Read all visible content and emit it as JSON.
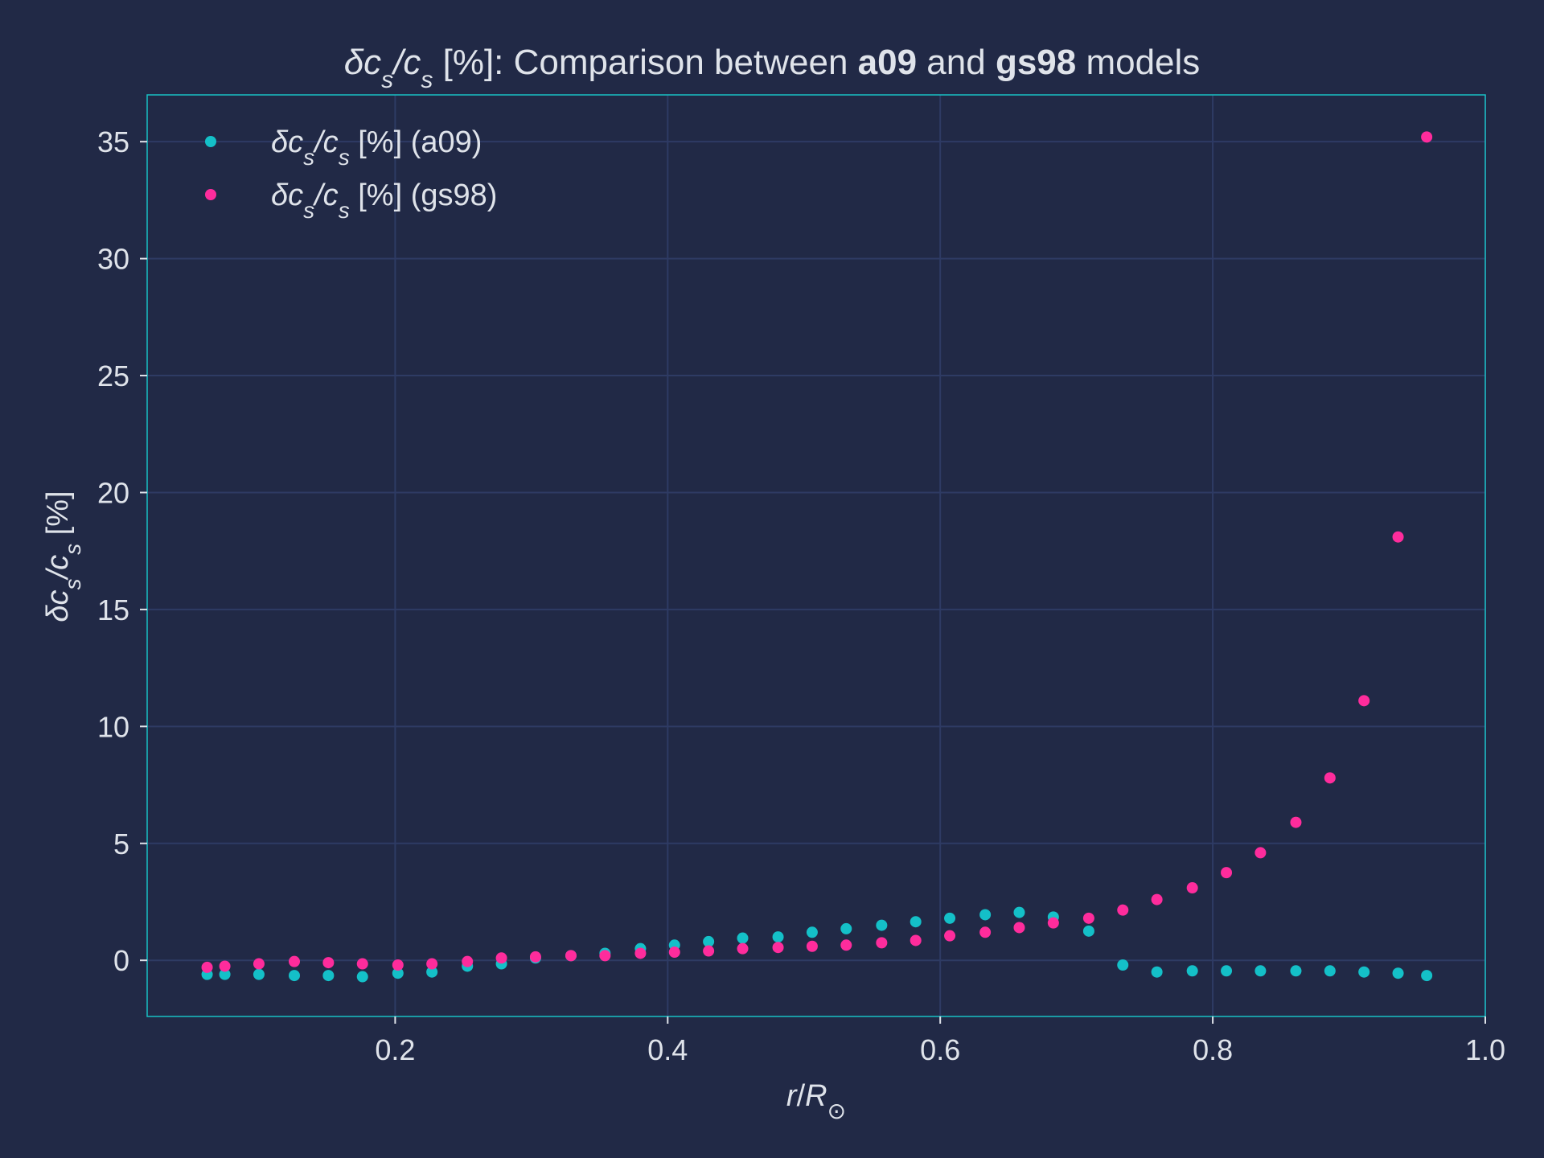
{
  "chart_data": {
    "type": "scatter",
    "title": {
      "p1": "δc",
      "p1_sub": "s",
      "p2": "/c",
      "p2_sub": "s",
      "p3": " [%]: Comparison between ",
      "b1": "a09",
      "p4": " and ",
      "b2": "gs98",
      "p5": " models"
    },
    "xlabel": {
      "r": "r",
      "slash": "/",
      "R": "R",
      "sun": "⊙"
    },
    "ylabel": {
      "a": "δc",
      "a_sub": "s",
      "b": "/c",
      "b_sub": "s",
      "c": " [%]"
    },
    "xlim": [
      0.018,
      1.0
    ],
    "ylim": [
      -2.4,
      37
    ],
    "xticks": [
      {
        "v": 0.2,
        "label": "0.2"
      },
      {
        "v": 0.4,
        "label": "0.4"
      },
      {
        "v": 0.6,
        "label": "0.6"
      },
      {
        "v": 0.8,
        "label": "0.8"
      },
      {
        "v": 1.0,
        "label": "1.0"
      }
    ],
    "yticks": [
      {
        "v": 0,
        "label": "0"
      },
      {
        "v": 5,
        "label": "5"
      },
      {
        "v": 10,
        "label": "10"
      },
      {
        "v": 15,
        "label": "15"
      },
      {
        "v": 20,
        "label": "20"
      },
      {
        "v": 25,
        "label": "25"
      },
      {
        "v": 30,
        "label": "30"
      },
      {
        "v": 35,
        "label": "35"
      }
    ],
    "grid": true,
    "legend_position": "top-left",
    "colors": {
      "background": "#212946",
      "grid": "#2e3b64",
      "frame": "#18c0c4",
      "text": "#dfe3ea"
    },
    "series": [
      {
        "name": "δcs/cs [%] (a09)",
        "legend": {
          "a": "δc",
          "a_sub": "s",
          "b": "/c",
          "b_sub": "s",
          "c": " [%] (a09)"
        },
        "color": "#14c0c8",
        "x": [
          0.062,
          0.075,
          0.1,
          0.126,
          0.151,
          0.176,
          0.202,
          0.227,
          0.253,
          0.278,
          0.303,
          0.329,
          0.354,
          0.38,
          0.405,
          0.43,
          0.455,
          0.481,
          0.506,
          0.531,
          0.557,
          0.582,
          0.607,
          0.633,
          0.658,
          0.683,
          0.709,
          0.734,
          0.759,
          0.785,
          0.81,
          0.835,
          0.861,
          0.886,
          0.911,
          0.936,
          0.957
        ],
        "y": [
          -0.6,
          -0.6,
          -0.6,
          -0.65,
          -0.65,
          -0.7,
          -0.55,
          -0.5,
          -0.25,
          -0.15,
          0.1,
          0.2,
          0.3,
          0.5,
          0.65,
          0.8,
          0.95,
          1.0,
          1.2,
          1.35,
          1.5,
          1.65,
          1.8,
          1.95,
          2.05,
          1.85,
          1.25,
          -0.2,
          -0.5,
          -0.45,
          -0.45,
          -0.45,
          -0.45,
          -0.45,
          -0.5,
          -0.55,
          -0.65
        ]
      },
      {
        "name": "δcs/cs [%] (gs98)",
        "legend": {
          "a": "δc",
          "a_sub": "s",
          "b": "/c",
          "b_sub": "s",
          "c": " [%] (gs98)"
        },
        "color": "#fe2c9c",
        "x": [
          0.062,
          0.075,
          0.1,
          0.126,
          0.151,
          0.176,
          0.202,
          0.227,
          0.253,
          0.278,
          0.303,
          0.329,
          0.354,
          0.38,
          0.405,
          0.43,
          0.455,
          0.481,
          0.506,
          0.531,
          0.557,
          0.582,
          0.607,
          0.633,
          0.658,
          0.683,
          0.709,
          0.734,
          0.759,
          0.785,
          0.81,
          0.835,
          0.861,
          0.886,
          0.911,
          0.936,
          0.957
        ],
        "y": [
          -0.3,
          -0.25,
          -0.15,
          -0.05,
          -0.1,
          -0.15,
          -0.2,
          -0.15,
          -0.05,
          0.1,
          0.15,
          0.2,
          0.2,
          0.3,
          0.35,
          0.4,
          0.5,
          0.55,
          0.6,
          0.65,
          0.75,
          0.85,
          1.05,
          1.2,
          1.4,
          1.6,
          1.8,
          2.15,
          2.6,
          3.1,
          3.75,
          4.6,
          5.9,
          7.8,
          11.1,
          18.1,
          35.2
        ]
      }
    ]
  }
}
